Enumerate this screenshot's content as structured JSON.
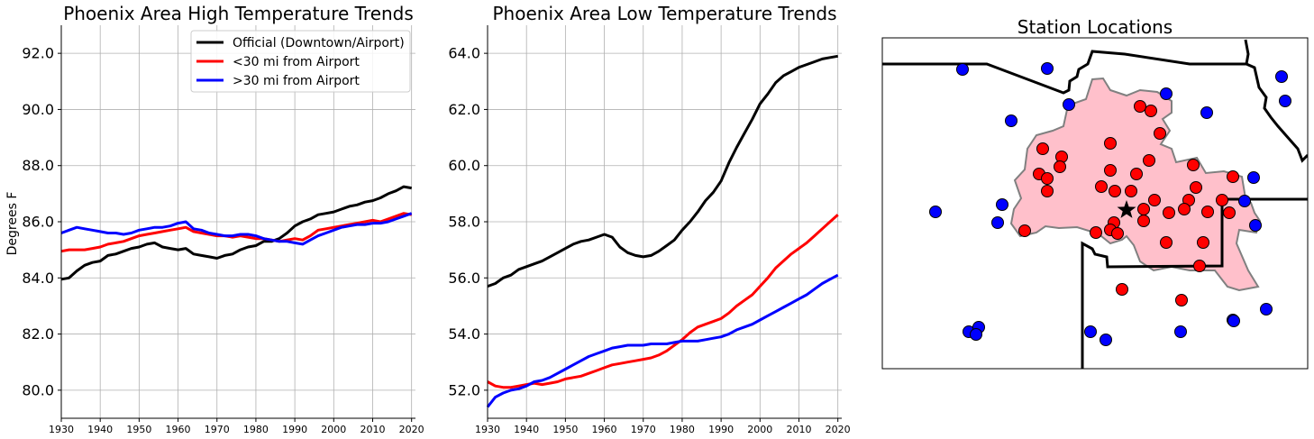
{
  "chart_data": [
    {
      "type": "line",
      "title": "Phoenix Area High Temperature Trends",
      "ylabel": "Degrees F",
      "xlim": [
        1930,
        2021
      ],
      "ylim": [
        79.0,
        93.0
      ],
      "xticks": [
        "1930",
        "1940",
        "1950",
        "1960",
        "1970",
        "1980",
        "1990",
        "2000",
        "2010",
        "2020"
      ],
      "yticks": [
        "80.0",
        "82.0",
        "84.0",
        "86.0",
        "88.0",
        "90.0",
        "92.0"
      ],
      "grid": true,
      "legend_position": "top-right",
      "series": [
        {
          "name": "Official (Downtown/Airport)",
          "color": "#000000",
          "x": [
            1930,
            1932,
            1934,
            1936,
            1938,
            1940,
            1942,
            1944,
            1946,
            1948,
            1950,
            1952,
            1954,
            1956,
            1958,
            1960,
            1962,
            1964,
            1966,
            1968,
            1970,
            1972,
            1974,
            1976,
            1978,
            1980,
            1982,
            1984,
            1986,
            1988,
            1990,
            1992,
            1994,
            1996,
            1998,
            2000,
            2002,
            2004,
            2006,
            2008,
            2010,
            2012,
            2014,
            2016,
            2018,
            2020
          ],
          "y": [
            83.95,
            84.0,
            84.25,
            84.45,
            84.55,
            84.6,
            84.8,
            84.85,
            84.95,
            85.05,
            85.1,
            85.2,
            85.25,
            85.1,
            85.05,
            85.0,
            85.05,
            84.85,
            84.8,
            84.75,
            84.7,
            84.8,
            84.85,
            85.0,
            85.1,
            85.15,
            85.3,
            85.3,
            85.4,
            85.6,
            85.85,
            86.0,
            86.1,
            86.25,
            86.3,
            86.35,
            86.45,
            86.55,
            86.6,
            86.7,
            86.75,
            86.85,
            87.0,
            87.1,
            87.25,
            87.2
          ]
        },
        {
          "name": "<30 mi from Airport",
          "color": "#ff0000",
          "x": [
            1930,
            1932,
            1934,
            1936,
            1938,
            1940,
            1942,
            1944,
            1946,
            1948,
            1950,
            1952,
            1954,
            1956,
            1958,
            1960,
            1962,
            1964,
            1966,
            1968,
            1970,
            1972,
            1974,
            1976,
            1978,
            1980,
            1982,
            1984,
            1986,
            1988,
            1990,
            1992,
            1994,
            1996,
            1998,
            2000,
            2002,
            2004,
            2006,
            2008,
            2010,
            2012,
            2014,
            2016,
            2018,
            2020
          ],
          "y": [
            84.95,
            85.0,
            85.0,
            85.0,
            85.05,
            85.1,
            85.2,
            85.25,
            85.3,
            85.4,
            85.5,
            85.55,
            85.6,
            85.65,
            85.7,
            85.75,
            85.8,
            85.65,
            85.6,
            85.55,
            85.5,
            85.5,
            85.45,
            85.5,
            85.45,
            85.4,
            85.4,
            85.35,
            85.3,
            85.35,
            85.4,
            85.35,
            85.5,
            85.7,
            85.75,
            85.8,
            85.85,
            85.9,
            85.95,
            86.0,
            86.05,
            86.0,
            86.1,
            86.2,
            86.3,
            86.25
          ]
        },
        {
          "name": ">30 mi from Airport",
          "color": "#0000ff",
          "x": [
            1930,
            1932,
            1934,
            1936,
            1938,
            1940,
            1942,
            1944,
            1946,
            1948,
            1950,
            1952,
            1954,
            1956,
            1958,
            1960,
            1962,
            1964,
            1966,
            1968,
            1970,
            1972,
            1974,
            1976,
            1978,
            1980,
            1982,
            1984,
            1986,
            1988,
            1990,
            1992,
            1994,
            1996,
            1998,
            2000,
            2002,
            2004,
            2006,
            2008,
            2010,
            2012,
            2014,
            2016,
            2018,
            2020
          ],
          "y": [
            85.6,
            85.7,
            85.8,
            85.75,
            85.7,
            85.65,
            85.6,
            85.6,
            85.55,
            85.6,
            85.7,
            85.75,
            85.8,
            85.8,
            85.85,
            85.95,
            86.0,
            85.75,
            85.7,
            85.6,
            85.55,
            85.5,
            85.5,
            85.55,
            85.55,
            85.5,
            85.4,
            85.35,
            85.3,
            85.3,
            85.25,
            85.2,
            85.35,
            85.5,
            85.6,
            85.7,
            85.8,
            85.85,
            85.9,
            85.9,
            85.95,
            85.95,
            86.0,
            86.1,
            86.2,
            86.3
          ]
        }
      ]
    },
    {
      "type": "line",
      "title": "Phoenix Area Low Temperature Trends",
      "xlim": [
        1930,
        2021
      ],
      "ylim": [
        51.0,
        65.0
      ],
      "xticks": [
        "1930",
        "1940",
        "1950",
        "1960",
        "1970",
        "1980",
        "1990",
        "2000",
        "2010",
        "2020"
      ],
      "yticks": [
        "52.0",
        "54.0",
        "56.0",
        "58.0",
        "60.0",
        "62.0",
        "64.0"
      ],
      "grid": true,
      "series": [
        {
          "name": "Official (Downtown/Airport)",
          "color": "#000000",
          "x": [
            1930,
            1932,
            1934,
            1936,
            1938,
            1940,
            1942,
            1944,
            1946,
            1948,
            1950,
            1952,
            1954,
            1956,
            1958,
            1960,
            1962,
            1964,
            1966,
            1968,
            1970,
            1972,
            1974,
            1976,
            1978,
            1980,
            1982,
            1984,
            1986,
            1988,
            1990,
            1992,
            1994,
            1996,
            1998,
            2000,
            2002,
            2004,
            2006,
            2008,
            2010,
            2012,
            2014,
            2016,
            2018,
            2020
          ],
          "y": [
            55.7,
            55.8,
            56.0,
            56.1,
            56.3,
            56.4,
            56.5,
            56.6,
            56.75,
            56.9,
            57.05,
            57.2,
            57.3,
            57.35,
            57.45,
            57.55,
            57.45,
            57.1,
            56.9,
            56.8,
            56.75,
            56.8,
            56.95,
            57.15,
            57.35,
            57.7,
            58.0,
            58.35,
            58.75,
            59.05,
            59.45,
            60.1,
            60.65,
            61.15,
            61.65,
            62.2,
            62.55,
            62.95,
            63.2,
            63.35,
            63.5,
            63.6,
            63.7,
            63.8,
            63.85,
            63.9
          ]
        },
        {
          "name": "<30 mi from Airport",
          "color": "#ff0000",
          "x": [
            1930,
            1932,
            1934,
            1936,
            1938,
            1940,
            1942,
            1944,
            1946,
            1948,
            1950,
            1952,
            1954,
            1956,
            1958,
            1960,
            1962,
            1964,
            1966,
            1968,
            1970,
            1972,
            1974,
            1976,
            1978,
            1980,
            1982,
            1984,
            1986,
            1988,
            1990,
            1992,
            1994,
            1996,
            1998,
            2000,
            2002,
            2004,
            2006,
            2008,
            2010,
            2012,
            2014,
            2016,
            2018,
            2020
          ],
          "y": [
            52.3,
            52.15,
            52.1,
            52.1,
            52.15,
            52.2,
            52.25,
            52.2,
            52.25,
            52.3,
            52.4,
            52.45,
            52.5,
            52.6,
            52.7,
            52.8,
            52.9,
            52.95,
            53.0,
            53.05,
            53.1,
            53.15,
            53.25,
            53.4,
            53.6,
            53.8,
            54.05,
            54.25,
            54.35,
            54.45,
            54.55,
            54.75,
            55.0,
            55.2,
            55.4,
            55.7,
            56.0,
            56.35,
            56.6,
            56.85,
            57.05,
            57.25,
            57.5,
            57.75,
            58.0,
            58.25
          ]
        },
        {
          "name": ">30 mi from Airport",
          "color": "#0000ff",
          "x": [
            1930,
            1932,
            1934,
            1936,
            1938,
            1940,
            1942,
            1944,
            1946,
            1948,
            1950,
            1952,
            1954,
            1956,
            1958,
            1960,
            1962,
            1964,
            1966,
            1968,
            1970,
            1972,
            1974,
            1976,
            1978,
            1980,
            1982,
            1984,
            1986,
            1988,
            1990,
            1992,
            1994,
            1996,
            1998,
            2000,
            2002,
            2004,
            2006,
            2008,
            2010,
            2012,
            2014,
            2016,
            2018,
            2020
          ],
          "y": [
            51.4,
            51.75,
            51.9,
            52.0,
            52.05,
            52.15,
            52.3,
            52.35,
            52.45,
            52.6,
            52.75,
            52.9,
            53.05,
            53.2,
            53.3,
            53.4,
            53.5,
            53.55,
            53.6,
            53.6,
            53.6,
            53.65,
            53.65,
            53.65,
            53.7,
            53.75,
            53.75,
            53.75,
            53.8,
            53.85,
            53.9,
            54.0,
            54.15,
            54.25,
            54.35,
            54.5,
            54.65,
            54.8,
            54.95,
            55.1,
            55.25,
            55.4,
            55.6,
            55.8,
            55.95,
            56.1
          ]
        }
      ]
    }
  ],
  "map": {
    "title": "Station Locations",
    "colors": {
      "near_station": "#ff0000",
      "far_station": "#0000ff",
      "urban_area": "#ffc0cb",
      "urban_edge": "#808080",
      "official_station": "#000000"
    },
    "near_stations": [
      [
        1265,
        118
      ],
      [
        1277,
        123
      ],
      [
        1287,
        148
      ],
      [
        1232,
        159
      ],
      [
        1157,
        165
      ],
      [
        1178,
        174
      ],
      [
        1176,
        185
      ],
      [
        1153,
        193
      ],
      [
        1162,
        198
      ],
      [
        1275,
        178
      ],
      [
        1232,
        189
      ],
      [
        1261,
        193
      ],
      [
        1324,
        183
      ],
      [
        1162,
        212
      ],
      [
        1222,
        207
      ],
      [
        1237,
        212
      ],
      [
        1255,
        212
      ],
      [
        1281,
        222
      ],
      [
        1327,
        208
      ],
      [
        1368,
        196
      ],
      [
        1319,
        222
      ],
      [
        1356,
        222
      ],
      [
        1269,
        232
      ],
      [
        1297,
        236
      ],
      [
        1314,
        232
      ],
      [
        1340,
        235
      ],
      [
        1364,
        236
      ],
      [
        1236,
        247
      ],
      [
        1269,
        245
      ],
      [
        1232,
        255
      ],
      [
        1216,
        258
      ],
      [
        1240,
        259
      ],
      [
        1137,
        256
      ],
      [
        1294,
        269
      ],
      [
        1335,
        269
      ],
      [
        1331,
        295
      ],
      [
        1245,
        321
      ],
      [
        1311,
        333
      ]
    ],
    "far_stations": [
      [
        1068,
        77
      ],
      [
        1162,
        76
      ],
      [
        1422,
        85
      ],
      [
        1294,
        104
      ],
      [
        1186,
        116
      ],
      [
        1426,
        112
      ],
      [
        1339,
        125
      ],
      [
        1122,
        134
      ],
      [
        1391,
        197
      ],
      [
        1381,
        223
      ],
      [
        1112,
        227
      ],
      [
        1038,
        235
      ],
      [
        1107,
        247
      ],
      [
        1393,
        250
      ],
      [
        1075,
        368
      ],
      [
        1086,
        363
      ],
      [
        1083,
        371
      ],
      [
        1210,
        368
      ],
      [
        1227,
        377
      ],
      [
        1310,
        368
      ],
      [
        1368,
        355
      ],
      [
        1369,
        356
      ],
      [
        1405,
        343
      ]
    ],
    "official_station": [
      1250,
      233
    ]
  }
}
